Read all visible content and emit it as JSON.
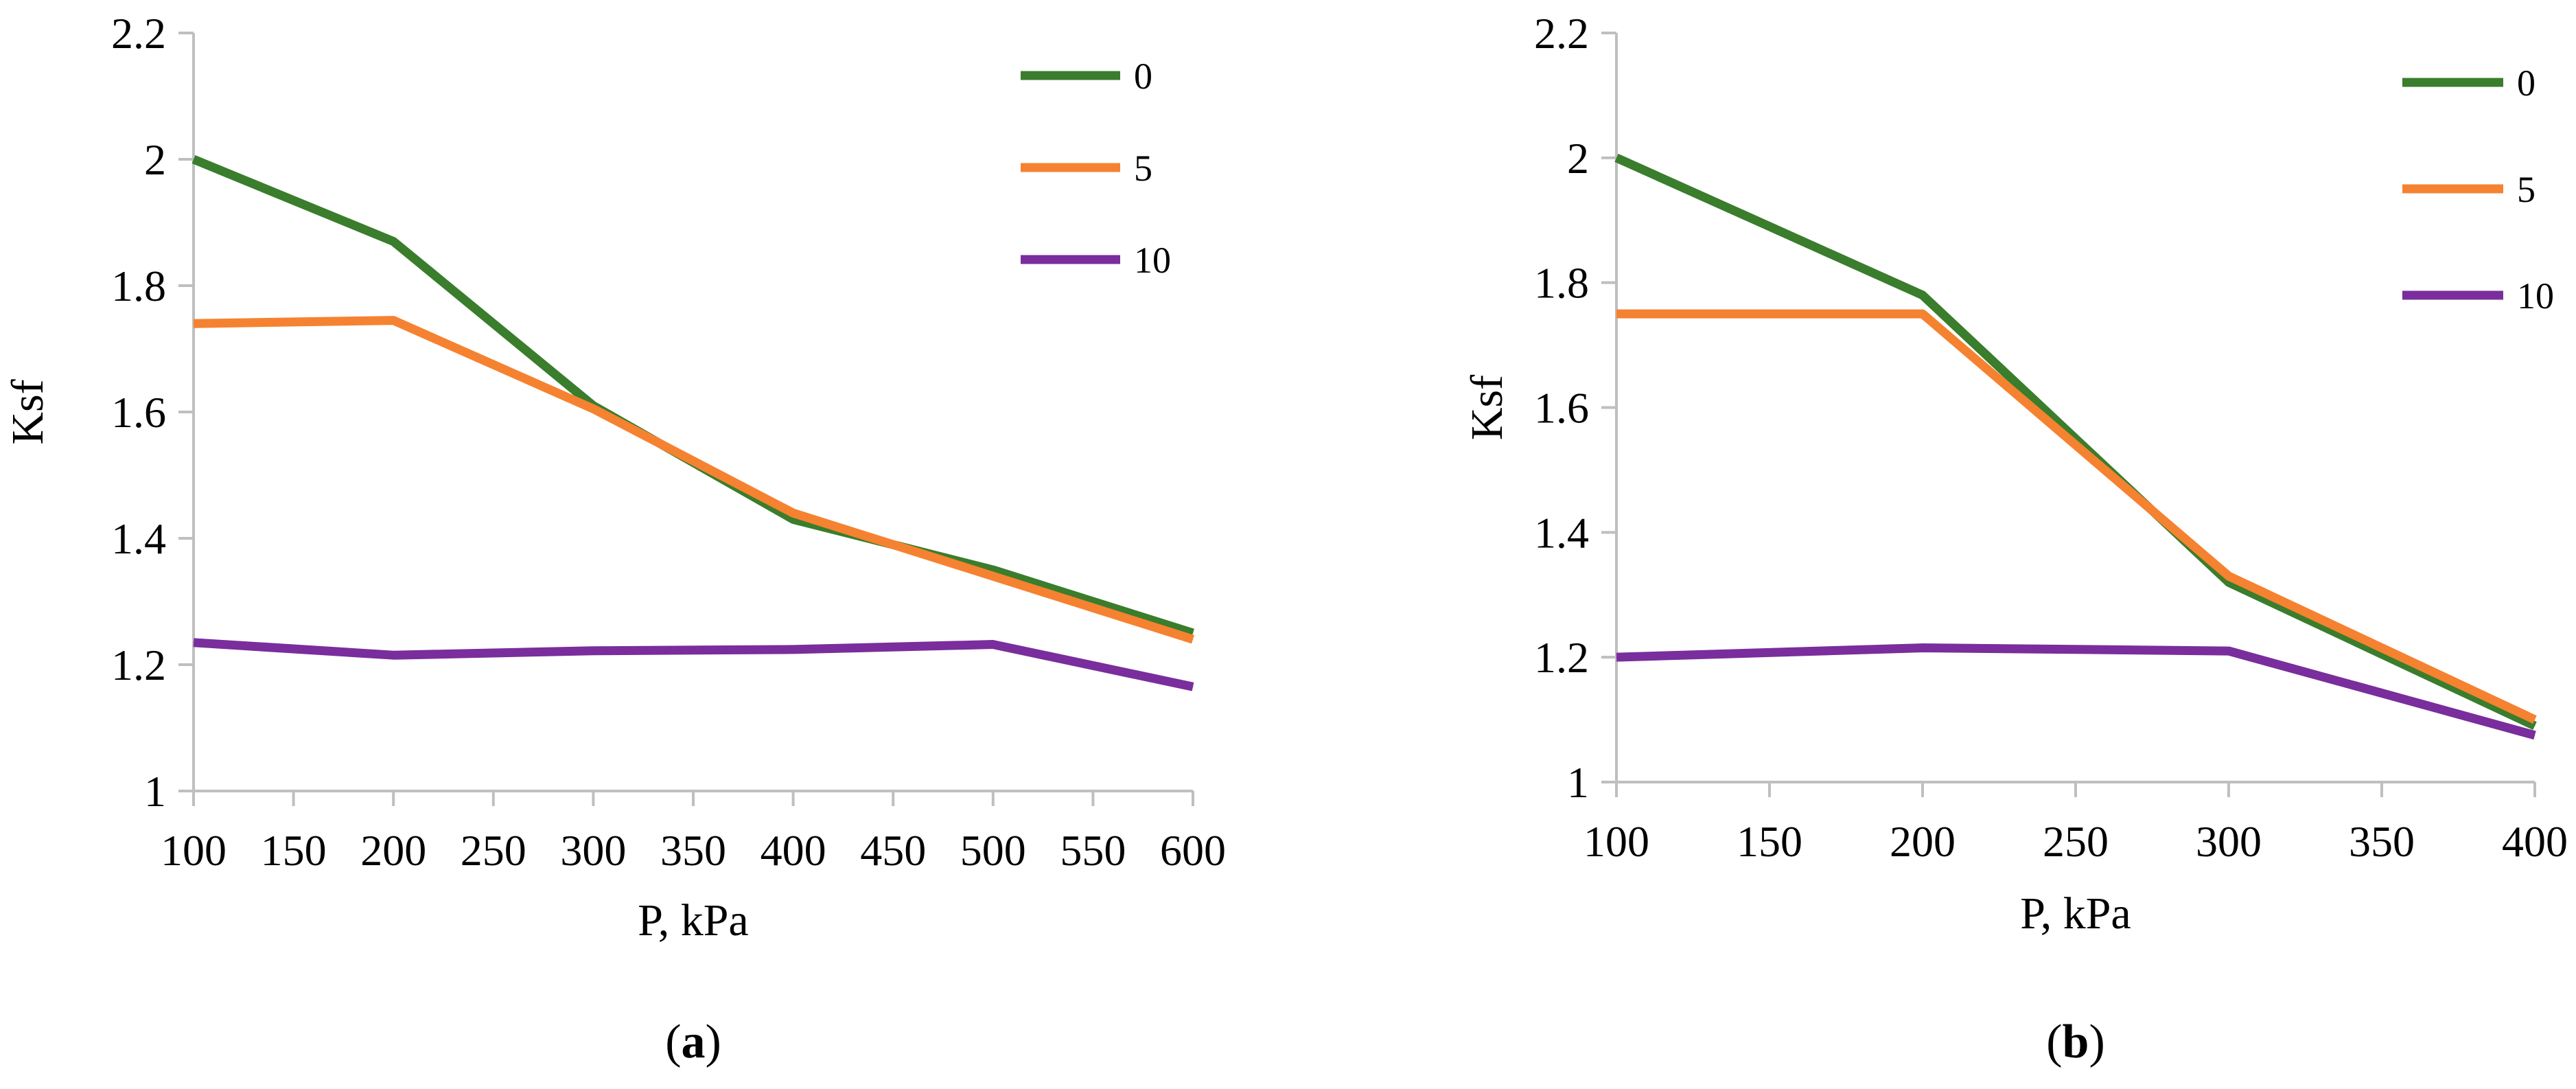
{
  "chart_data": [
    {
      "type": "line",
      "panel_label": "a",
      "xlabel": "P, kPa",
      "ylabel": "Ksf",
      "x": [
        100,
        200,
        300,
        400,
        500,
        600
      ],
      "xlim": [
        100,
        600
      ],
      "xticks": [
        100,
        150,
        200,
        250,
        300,
        350,
        400,
        450,
        500,
        550,
        600
      ],
      "ylim": [
        1,
        2.2
      ],
      "yticks": [
        1,
        1.2,
        1.4,
        1.6,
        1.8,
        2,
        2.2
      ],
      "ytick_labels": [
        "1",
        "1.2",
        "1.4",
        "1.6",
        "1.8",
        "2",
        "2.2"
      ],
      "grid": false,
      "legend_position": "top-right",
      "series": [
        {
          "name": "0",
          "color": "#3a7d2c",
          "values": [
            2.0,
            1.87,
            1.61,
            1.43,
            1.35,
            1.25
          ]
        },
        {
          "name": "5",
          "color": "#f58231",
          "values": [
            1.74,
            1.745,
            1.605,
            1.44,
            1.34,
            1.24
          ]
        },
        {
          "name": "10",
          "color": "#7a2d9c",
          "values": [
            1.235,
            1.215,
            1.222,
            1.224,
            1.232,
            1.165
          ]
        }
      ]
    },
    {
      "type": "line",
      "panel_label": "b",
      "xlabel": "P, kPa",
      "ylabel": "Ksf",
      "x": [
        100,
        200,
        300,
        400
      ],
      "xlim": [
        100,
        400
      ],
      "xticks": [
        100,
        150,
        200,
        250,
        300,
        350,
        400
      ],
      "ylim": [
        1,
        2.2
      ],
      "yticks": [
        1,
        1.2,
        1.4,
        1.6,
        1.8,
        2,
        2.2
      ],
      "ytick_labels": [
        "1",
        "1.2",
        "1.4",
        "1.6",
        "1.8",
        "2",
        "2.2"
      ],
      "grid": false,
      "legend_position": "top-right",
      "series": [
        {
          "name": "0",
          "color": "#3a7d2c",
          "values": [
            2.0,
            1.78,
            1.32,
            1.09
          ]
        },
        {
          "name": "5",
          "color": "#f58231",
          "values": [
            1.75,
            1.75,
            1.33,
            1.1
          ]
        },
        {
          "name": "10",
          "color": "#7a2d9c",
          "values": [
            1.2,
            1.215,
            1.21,
            1.075
          ]
        }
      ]
    }
  ]
}
